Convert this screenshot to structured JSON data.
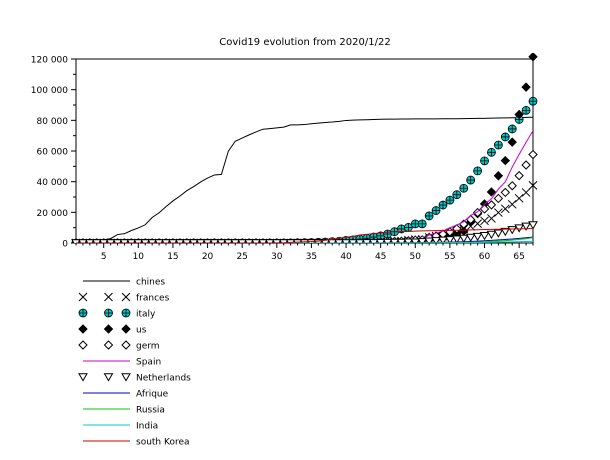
{
  "chart_data": {
    "type": "line",
    "title": "Covid19 evolution from 2020/1/22",
    "xlabel": "",
    "ylabel": "",
    "xlim": [
      1,
      67
    ],
    "ylim": [
      0,
      120000
    ],
    "x_ticks": [
      5,
      10,
      15,
      20,
      25,
      30,
      35,
      40,
      45,
      50,
      55,
      60,
      65
    ],
    "y_ticks": [
      0,
      20000,
      40000,
      60000,
      80000,
      100000,
      120000
    ],
    "y_tick_labels": [
      "0",
      "20 000",
      "40 000",
      "60 000",
      "80 000",
      "100 000",
      "120 000"
    ],
    "grid": false,
    "legend_position": "below",
    "series": [
      {
        "name": "chines",
        "color": "#000000",
        "style": "line",
        "values": [
          548,
          643,
          920,
          1406,
          2075,
          2877,
          5509,
          6087,
          8141,
          9802,
          11891,
          16630,
          19716,
          23707,
          27440,
          30587,
          34110,
          36814,
          39829,
          42354,
          44386,
          44759,
          59895,
          66358,
          68413,
          70513,
          72434,
          74211,
          74619,
          75077,
          75550,
          77001,
          77022,
          77241,
          77754,
          78166,
          78600,
          78928,
          79356,
          79932,
          80136,
          80261,
          80386,
          80537,
          80690,
          80770,
          80823,
          80860,
          80887,
          80921,
          80932,
          80945,
          80977,
          81003,
          81033,
          81058,
          81102,
          81156,
          81250,
          81305,
          81435,
          81498,
          81591,
          81661,
          81782,
          81897,
          81999
        ]
      },
      {
        "name": "frances",
        "color": "#000000",
        "style": "marker",
        "marker": "x",
        "values": [
          0,
          0,
          2,
          3,
          3,
          3,
          4,
          5,
          5,
          5,
          6,
          6,
          6,
          6,
          6,
          6,
          6,
          11,
          11,
          11,
          11,
          11,
          11,
          11,
          12,
          12,
          12,
          12,
          12,
          12,
          12,
          12,
          12,
          12,
          14,
          18,
          38,
          57,
          100,
          130,
          191,
          204,
          285,
          377,
          653,
          949,
          1126,
          1209,
          1784,
          2281,
          2281,
          3661,
          4469,
          4499,
          6633,
          7652,
          9043,
          10871,
          12612,
          14459,
          16018,
          19856,
          22304,
          25233,
          29155,
          32964,
          37575
        ]
      },
      {
        "name": "italy",
        "color": "#00c8c8",
        "style": "marker",
        "marker": "circle-plus",
        "values": [
          0,
          0,
          0,
          0,
          0,
          0,
          0,
          0,
          0,
          2,
          2,
          2,
          2,
          2,
          2,
          2,
          3,
          3,
          3,
          3,
          3,
          3,
          3,
          3,
          3,
          3,
          3,
          3,
          3,
          3,
          20,
          62,
          155,
          229,
          322,
          453,
          655,
          888,
          1128,
          1694,
          2036,
          2502,
          3089,
          3858,
          4636,
          5883,
          7375,
          9172,
          10149,
          12462,
          12462,
          17660,
          21157,
          24747,
          27980,
          31506,
          35713,
          41035,
          47021,
          53578,
          59138,
          63927,
          69176,
          74386,
          80589,
          86498,
          92472
        ]
      },
      {
        "name": "us",
        "color": "#000000",
        "style": "marker",
        "marker": "diamond-filled",
        "values": [
          1,
          1,
          2,
          2,
          5,
          5,
          5,
          5,
          5,
          7,
          8,
          8,
          11,
          11,
          11,
          11,
          11,
          11,
          11,
          11,
          12,
          12,
          13,
          13,
          13,
          13,
          13,
          13,
          13,
          13,
          15,
          15,
          15,
          51,
          51,
          57,
          58,
          60,
          68,
          74,
          98,
          118,
          149,
          217,
          262,
          402,
          518,
          583,
          959,
          1281,
          1663,
          2179,
          2727,
          3499,
          4632,
          6421,
          7783,
          13677,
          19100,
          25489,
          33276,
          43847,
          53740,
          65778,
          83836,
          101657,
          121478
        ]
      },
      {
        "name": "germ",
        "color": "#000000",
        "style": "marker",
        "marker": "diamond-open",
        "values": [
          0,
          0,
          0,
          0,
          0,
          1,
          4,
          4,
          4,
          5,
          8,
          10,
          12,
          12,
          12,
          12,
          13,
          13,
          14,
          14,
          16,
          16,
          16,
          16,
          16,
          16,
          16,
          16,
          16,
          16,
          16,
          16,
          16,
          16,
          17,
          27,
          46,
          48,
          79,
          130,
          159,
          196,
          262,
          482,
          670,
          799,
          1040,
          1176,
          1457,
          1908,
          2078,
          3675,
          4585,
          5795,
          7272,
          9257,
          12327,
          15320,
          19848,
          22213,
          24873,
          29056,
          32986,
          37323,
          43938,
          50871,
          57695
        ]
      },
      {
        "name": "Spain",
        "color": "#c800c8",
        "style": "line",
        "values": [
          0,
          0,
          0,
          0,
          0,
          0,
          0,
          0,
          0,
          0,
          1,
          1,
          1,
          1,
          1,
          1,
          1,
          1,
          2,
          2,
          2,
          2,
          2,
          2,
          2,
          2,
          2,
          2,
          2,
          2,
          2,
          2,
          2,
          2,
          6,
          13,
          15,
          32,
          45,
          84,
          120,
          165,
          222,
          259,
          400,
          500,
          673,
          1073,
          1695,
          2277,
          2277,
          5232,
          6391,
          7798,
          9942,
          11748,
          13910,
          17963,
          20410,
          25374,
          28768,
          35136,
          39885,
          49515,
          57786,
          65719,
          73235
        ]
      },
      {
        "name": "Netherlands",
        "color": "#000000",
        "style": "marker",
        "marker": "triangle-down",
        "values": [
          0,
          0,
          0,
          0,
          0,
          0,
          0,
          0,
          0,
          0,
          0,
          0,
          0,
          0,
          0,
          0,
          0,
          0,
          0,
          0,
          0,
          0,
          0,
          0,
          0,
          0,
          0,
          0,
          0,
          0,
          0,
          0,
          0,
          0,
          0,
          1,
          1,
          6,
          10,
          18,
          24,
          38,
          82,
          128,
          188,
          265,
          321,
          382,
          503,
          503,
          806,
          1135,
          1413,
          1705,
          2051,
          2460,
          2994,
          3631,
          4204,
          4749,
          5560,
          6412,
          7431,
          8603,
          9762,
          10866,
          11750
        ]
      },
      {
        "name": "Afrique",
        "color": "#0000c8",
        "style": "line",
        "values": [
          0,
          0,
          0,
          0,
          0,
          0,
          0,
          0,
          0,
          0,
          0,
          0,
          0,
          0,
          0,
          0,
          0,
          0,
          0,
          0,
          0,
          0,
          0,
          1,
          1,
          1,
          1,
          1,
          1,
          1,
          1,
          1,
          1,
          1,
          2,
          2,
          3,
          3,
          5,
          8,
          10,
          14,
          20,
          30,
          45,
          60,
          80,
          100,
          130,
          170,
          220,
          300,
          380,
          460,
          560,
          680,
          830,
          1000,
          1200,
          1450,
          1700,
          2000,
          2300,
          2650,
          3000,
          3400,
          3800
        ]
      },
      {
        "name": "Russia",
        "color": "#00c800",
        "style": "line",
        "values": [
          0,
          0,
          0,
          0,
          0,
          0,
          0,
          0,
          0,
          2,
          2,
          2,
          2,
          2,
          2,
          2,
          2,
          2,
          2,
          2,
          2,
          2,
          2,
          2,
          2,
          2,
          2,
          2,
          2,
          2,
          2,
          2,
          2,
          2,
          2,
          3,
          3,
          3,
          4,
          13,
          13,
          17,
          17,
          20,
          20,
          28,
          45,
          59,
          63,
          90,
          114,
          147,
          199,
          253,
          306,
          367,
          438,
          495,
          658,
          840,
          1036,
          1264,
          1534,
          1836,
          2337,
          2777,
          3548
        ]
      },
      {
        "name": "India",
        "color": "#00c8c8",
        "style": "line",
        "values": [
          0,
          0,
          0,
          0,
          0,
          0,
          0,
          0,
          0,
          1,
          1,
          1,
          2,
          3,
          3,
          3,
          3,
          3,
          3,
          3,
          3,
          3,
          3,
          3,
          3,
          3,
          3,
          3,
          3,
          3,
          3,
          3,
          3,
          3,
          3,
          3,
          3,
          3,
          3,
          5,
          5,
          28,
          30,
          31,
          34,
          39,
          43,
          56,
          62,
          73,
          82,
          102,
          113,
          119,
          142,
          156,
          194,
          244,
          330,
          396,
          499,
          536,
          657,
          727,
          887,
          987,
          1024
        ]
      },
      {
        "name": "south Korea",
        "color": "#c80000",
        "style": "line",
        "values": [
          1,
          1,
          2,
          2,
          3,
          4,
          4,
          4,
          4,
          11,
          12,
          15,
          15,
          16,
          19,
          23,
          24,
          24,
          25,
          27,
          28,
          28,
          28,
          28,
          28,
          29,
          30,
          31,
          31,
          104,
          204,
          433,
          602,
          833,
          977,
          1261,
          1766,
          2337,
          3150,
          3736,
          4335,
          5186,
          5621,
          6088,
          6593,
          7041,
          7314,
          7478,
          7513,
          7755,
          7869,
          7979,
          8086,
          8162,
          8236,
          8320,
          8413,
          8565,
          8652,
          8799,
          8897,
          8961,
          9037,
          9137,
          9241,
          9332,
          9478
        ]
      }
    ]
  }
}
